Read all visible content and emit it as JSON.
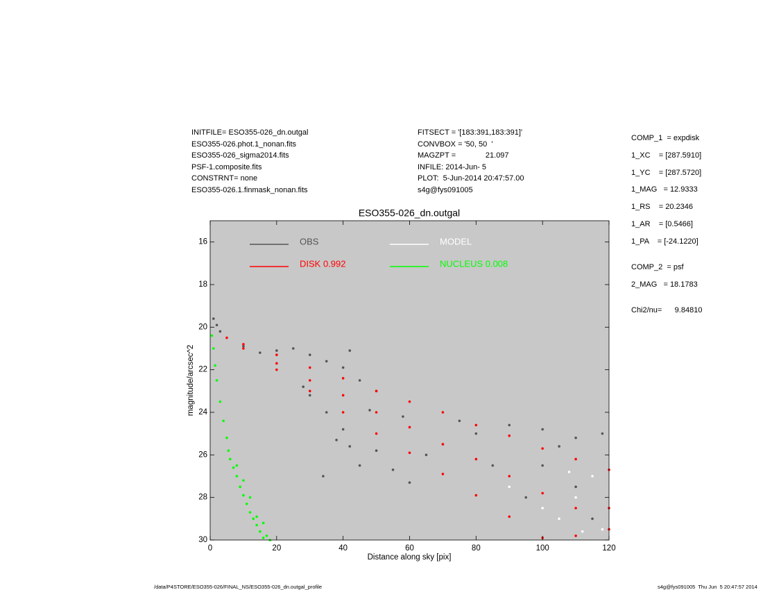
{
  "info_left": [
    "INITFILE= ESO355-026_dn.outgal",
    "ESO355-026.phot.1_nonan.fits",
    "ESO355-026_sigma2014.fits",
    "PSF-1.composite.fits",
    "CONSTRNT= none",
    "ESO355-026.1.finmask_nonan.fits"
  ],
  "info_mid": [
    "FITSECT = '[183:391,183:391]'",
    "CONVBOX = '50, 50  '",
    "MAGZPT =              21.097",
    "INFILE: 2014-Jun- 5",
    "PLOT:  5-Jun-2014 20:47:57.00",
    "s4g@fys091005"
  ],
  "params": [
    "COMP_1  = expdisk",
    "1_XC    = [287.5910]",
    "1_YC    = [287.5720]",
    "1_MAG   = 12.9333",
    "1_RS    = 20.2346",
    "1_AR    = [0.5466]",
    "1_PA    = [-24.1220]",
    "COMP_2  = psf",
    "2_MAG   = 18.1783",
    "Chi2/nu=      9.84810"
  ],
  "footer_left": "/data/P4STORE/ESO355-026/FINAL_NS/ESO355-026_dn.outgal_profile",
  "footer_right": "s4g@fys091005  Thu Jun  5 20:47:57 2014",
  "chart_data": {
    "type": "scatter",
    "title": "ESO355-026_dn.outgal",
    "xlabel": "Distance along sky [pix]",
    "ylabel": "magnitude/arcsec^2",
    "xlim": [
      0,
      120
    ],
    "ylim": [
      30,
      15
    ],
    "xticks": [
      0,
      20,
      40,
      60,
      80,
      100,
      120
    ],
    "yticks": [
      16,
      18,
      20,
      22,
      24,
      26,
      28,
      30
    ],
    "legend": "upper left",
    "background": "#c8c8c8",
    "series": [
      {
        "name": "OBS",
        "color": "#555555",
        "x": [
          1,
          2,
          3,
          10,
          15,
          20,
          25,
          30,
          35,
          40,
          42,
          45,
          50,
          30,
          35,
          40,
          38,
          42,
          45,
          50,
          55,
          60,
          65,
          70,
          80,
          90,
          100,
          110,
          118,
          100,
          110,
          115,
          95,
          85,
          75,
          34,
          28,
          48,
          58,
          105
        ],
        "values": [
          19.6,
          19.9,
          20.2,
          20.9,
          21.2,
          21.1,
          21.0,
          21.3,
          21.6,
          21.9,
          21.1,
          22.5,
          23.0,
          23.2,
          24.0,
          24.8,
          25.3,
          25.6,
          26.5,
          25.8,
          26.7,
          27.3,
          26.0,
          25.5,
          25.0,
          24.6,
          24.8,
          25.2,
          25.0,
          26.5,
          27.5,
          29.0,
          28.0,
          26.5,
          24.4,
          27.0,
          22.8,
          23.9,
          24.2,
          25.6
        ]
      },
      {
        "name": "DISK  0.992",
        "color": "#ff0000",
        "x": [
          5,
          10,
          10,
          20,
          20,
          20,
          30,
          30,
          30,
          40,
          40,
          40,
          50,
          50,
          50,
          60,
          60,
          60,
          70,
          70,
          70,
          80,
          80,
          80,
          90,
          90,
          90,
          100,
          100,
          100,
          110,
          110,
          110,
          120,
          120,
          120
        ],
        "values": [
          20.5,
          20.8,
          21.0,
          21.3,
          21.7,
          22.0,
          21.9,
          22.5,
          23.0,
          22.4,
          23.2,
          24.0,
          23.0,
          24.0,
          25.0,
          23.5,
          24.7,
          25.9,
          24.0,
          25.5,
          26.9,
          24.6,
          26.2,
          27.9,
          25.1,
          27.0,
          28.9,
          25.7,
          27.8,
          29.9,
          26.2,
          28.5,
          29.8,
          26.7,
          28.5,
          29.5
        ]
      },
      {
        "name": "MODEL",
        "color": "#ffffff",
        "x": [
          90,
          100,
          105,
          110,
          115,
          118,
          108,
          112
        ],
        "values": [
          27.5,
          28.5,
          29.0,
          28.0,
          27.0,
          29.5,
          26.8,
          29.6
        ]
      },
      {
        "name": "NUCLEUS  0.008",
        "color": "#00ff00",
        "x": [
          0.5,
          1,
          1.5,
          2,
          3,
          4,
          5,
          5.5,
          6,
          7,
          8,
          9,
          10,
          11,
          12,
          13,
          14,
          15,
          16,
          17,
          18,
          8,
          10,
          12,
          14,
          16
        ],
        "values": [
          20.4,
          21,
          21.8,
          22.5,
          23.5,
          24.4,
          25.2,
          25.8,
          26.2,
          26.6,
          27.0,
          27.5,
          27.9,
          28.3,
          28.7,
          29.0,
          29.3,
          29.6,
          29.9,
          29.8,
          30.0,
          26.5,
          27.2,
          28.0,
          28.9,
          29.2
        ]
      }
    ]
  }
}
